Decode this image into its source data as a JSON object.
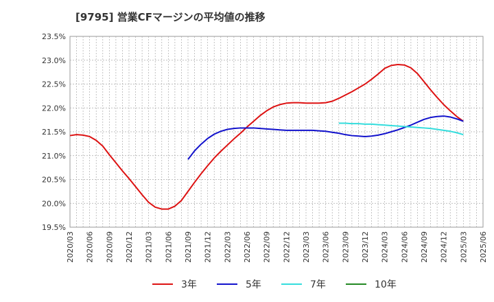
{
  "chart_data": {
    "type": "line",
    "title": "[9795]  営業CFマージンの平均値の推移",
    "xlabel": "",
    "ylabel": "",
    "ylim": [
      19.5,
      23.5
    ],
    "yticks": [
      "19.5%",
      "20.0%",
      "20.5%",
      "21.0%",
      "21.5%",
      "22.0%",
      "22.5%",
      "23.0%",
      "23.5%"
    ],
    "x_start": "2020/03",
    "x_end": "2025/06",
    "xticks": [
      "2020/03",
      "2020/06",
      "2020/09",
      "2020/12",
      "2021/03",
      "2021/06",
      "2021/09",
      "2021/12",
      "2022/03",
      "2022/06",
      "2022/09",
      "2022/12",
      "2023/03",
      "2023/06",
      "2023/09",
      "2023/12",
      "2024/03",
      "2024/06",
      "2024/09",
      "2024/12",
      "2025/03",
      "2025/06"
    ],
    "grid": true,
    "legend_position": "bottom",
    "series": [
      {
        "name": "3年",
        "color": "#dd1111",
        "points": [
          [
            "2020/03",
            21.42
          ],
          [
            "2020/04",
            21.44
          ],
          [
            "2020/05",
            21.43
          ],
          [
            "2020/06",
            21.4
          ],
          [
            "2020/07",
            21.32
          ],
          [
            "2020/08",
            21.2
          ],
          [
            "2020/09",
            21.02
          ],
          [
            "2020/10",
            20.85
          ],
          [
            "2020/11",
            20.68
          ],
          [
            "2020/12",
            20.52
          ],
          [
            "2021/01",
            20.35
          ],
          [
            "2021/02",
            20.18
          ],
          [
            "2021/03",
            20.02
          ],
          [
            "2021/04",
            19.92
          ],
          [
            "2021/05",
            19.88
          ],
          [
            "2021/06",
            19.88
          ],
          [
            "2021/07",
            19.94
          ],
          [
            "2021/08",
            20.06
          ],
          [
            "2021/09",
            20.25
          ],
          [
            "2021/10",
            20.44
          ],
          [
            "2021/11",
            20.62
          ],
          [
            "2021/12",
            20.79
          ],
          [
            "2022/01",
            20.95
          ],
          [
            "2022/02",
            21.09
          ],
          [
            "2022/03",
            21.22
          ],
          [
            "2022/04",
            21.35
          ],
          [
            "2022/05",
            21.47
          ],
          [
            "2022/06",
            21.6
          ],
          [
            "2022/07",
            21.72
          ],
          [
            "2022/08",
            21.84
          ],
          [
            "2022/09",
            21.94
          ],
          [
            "2022/10",
            22.02
          ],
          [
            "2022/11",
            22.07
          ],
          [
            "2022/12",
            22.1
          ],
          [
            "2023/01",
            22.11
          ],
          [
            "2023/02",
            22.11
          ],
          [
            "2023/03",
            22.1
          ],
          [
            "2023/04",
            22.1
          ],
          [
            "2023/05",
            22.1
          ],
          [
            "2023/06",
            22.11
          ],
          [
            "2023/07",
            22.14
          ],
          [
            "2023/08",
            22.2
          ],
          [
            "2023/09",
            22.27
          ],
          [
            "2023/10",
            22.34
          ],
          [
            "2023/11",
            22.42
          ],
          [
            "2023/12",
            22.5
          ],
          [
            "2024/01",
            22.6
          ],
          [
            "2024/02",
            22.71
          ],
          [
            "2024/03",
            22.83
          ],
          [
            "2024/04",
            22.89
          ],
          [
            "2024/05",
            22.91
          ],
          [
            "2024/06",
            22.9
          ],
          [
            "2024/07",
            22.84
          ],
          [
            "2024/08",
            22.72
          ],
          [
            "2024/09",
            22.55
          ],
          [
            "2024/10",
            22.38
          ],
          [
            "2024/11",
            22.22
          ],
          [
            "2024/12",
            22.07
          ],
          [
            "2025/01",
            21.94
          ],
          [
            "2025/02",
            21.82
          ],
          [
            "2025/03",
            21.72
          ]
        ]
      },
      {
        "name": "5年",
        "color": "#1111cc",
        "points": [
          [
            "2021/09",
            20.92
          ],
          [
            "2021/10",
            21.1
          ],
          [
            "2021/11",
            21.24
          ],
          [
            "2021/12",
            21.36
          ],
          [
            "2022/01",
            21.45
          ],
          [
            "2022/02",
            21.51
          ],
          [
            "2022/03",
            21.55
          ],
          [
            "2022/04",
            21.57
          ],
          [
            "2022/05",
            21.58
          ],
          [
            "2022/06",
            21.58
          ],
          [
            "2022/07",
            21.58
          ],
          [
            "2022/08",
            21.57
          ],
          [
            "2022/09",
            21.56
          ],
          [
            "2022/10",
            21.55
          ],
          [
            "2022/11",
            21.54
          ],
          [
            "2022/12",
            21.53
          ],
          [
            "2023/01",
            21.53
          ],
          [
            "2023/02",
            21.53
          ],
          [
            "2023/03",
            21.53
          ],
          [
            "2023/04",
            21.53
          ],
          [
            "2023/05",
            21.52
          ],
          [
            "2023/06",
            21.51
          ],
          [
            "2023/07",
            21.49
          ],
          [
            "2023/08",
            21.47
          ],
          [
            "2023/09",
            21.44
          ],
          [
            "2023/10",
            21.42
          ],
          [
            "2023/11",
            21.41
          ],
          [
            "2023/12",
            21.4
          ],
          [
            "2024/01",
            21.41
          ],
          [
            "2024/02",
            21.43
          ],
          [
            "2024/03",
            21.46
          ],
          [
            "2024/04",
            21.5
          ],
          [
            "2024/05",
            21.54
          ],
          [
            "2024/06",
            21.59
          ],
          [
            "2024/07",
            21.64
          ],
          [
            "2024/08",
            21.7
          ],
          [
            "2024/09",
            21.76
          ],
          [
            "2024/10",
            21.8
          ],
          [
            "2024/11",
            21.82
          ],
          [
            "2024/12",
            21.83
          ],
          [
            "2025/01",
            21.81
          ],
          [
            "2025/02",
            21.77
          ],
          [
            "2025/03",
            21.72
          ]
        ]
      },
      {
        "name": "7年",
        "color": "#33dddd",
        "points": [
          [
            "2023/08",
            21.68
          ],
          [
            "2023/09",
            21.68
          ],
          [
            "2023/10",
            21.67
          ],
          [
            "2023/11",
            21.67
          ],
          [
            "2023/12",
            21.66
          ],
          [
            "2024/01",
            21.66
          ],
          [
            "2024/02",
            21.65
          ],
          [
            "2024/03",
            21.64
          ],
          [
            "2024/04",
            21.63
          ],
          [
            "2024/05",
            21.62
          ],
          [
            "2024/06",
            21.61
          ],
          [
            "2024/07",
            21.6
          ],
          [
            "2024/08",
            21.59
          ],
          [
            "2024/09",
            21.58
          ],
          [
            "2024/10",
            21.57
          ],
          [
            "2024/11",
            21.55
          ],
          [
            "2024/12",
            21.53
          ],
          [
            "2025/01",
            21.51
          ],
          [
            "2025/02",
            21.48
          ],
          [
            "2025/03",
            21.44
          ]
        ]
      },
      {
        "name": "10年",
        "color": "#228822",
        "points": []
      }
    ]
  }
}
